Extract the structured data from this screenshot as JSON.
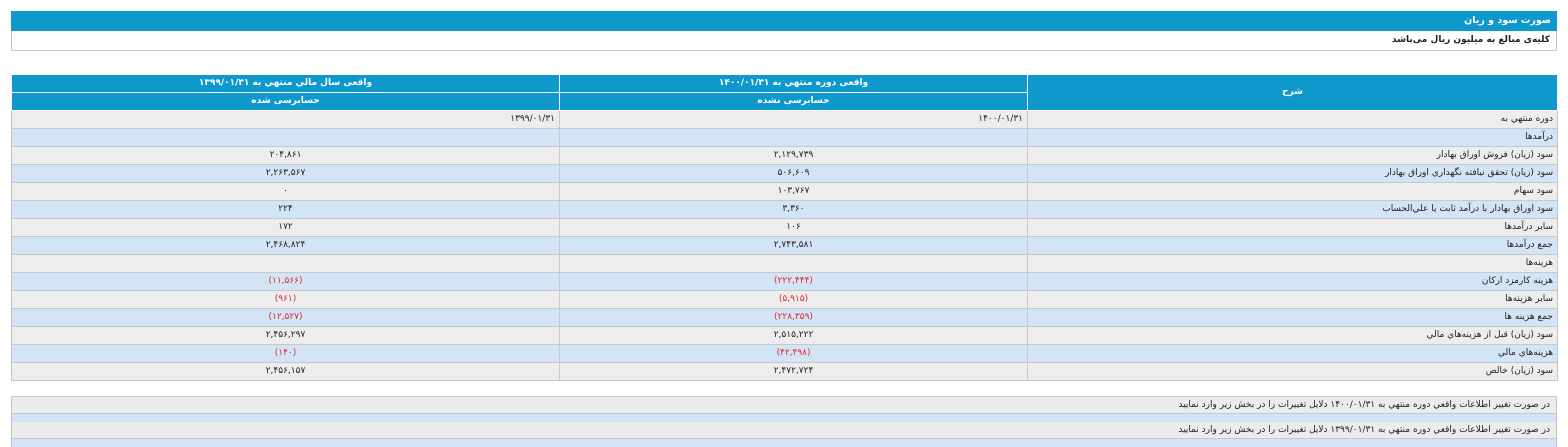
{
  "title": "صورت سود و زیان",
  "note": "کلیه‌ی مبالغ به میلیون ریال می‌باشد",
  "headers": {
    "desc": "شرح",
    "col1_top": "واقعی دوره منتهي به ۱۴۰۰/۰۱/۳۱",
    "col1_sub": "حسابرسی نشده",
    "col2_top": "واقعی سال مالي منتهي به ۱۳۹۹/۰۱/۳۱",
    "col2_sub": "حسابرسی شده"
  },
  "rows": [
    {
      "desc": "دوره منتهي به",
      "v1": "۱۴۰۰/۰۱/۳۱",
      "v2": "۱۳۹۹/۰۱/۳۱",
      "v1neg": false,
      "v2neg": false,
      "dateRow": true
    },
    {
      "desc": "درآمدها",
      "v1": "",
      "v2": "",
      "v1neg": false,
      "v2neg": false
    },
    {
      "desc": "سود (زيان) فروش اوراق بهادار",
      "v1": "۲,۱۲۹,۷۳۹",
      "v2": "۲۰۴,۸۶۱",
      "v1neg": false,
      "v2neg": false
    },
    {
      "desc": "سود (زيان) تحقق نيافته نگهداري اوراق بهادار",
      "v1": "۵۰۶,۶۰۹",
      "v2": "۲,۲۶۳,۵۶۷",
      "v1neg": false,
      "v2neg": false
    },
    {
      "desc": "سود سهام",
      "v1": "۱۰۳,۷۶۷",
      "v2": "۰",
      "v1neg": false,
      "v2neg": false
    },
    {
      "desc": "سود اوراق بهادار با درآمد ثابت يا علي‌الحساب",
      "v1": "۳,۳۶۰",
      "v2": "۲۲۴",
      "v1neg": false,
      "v2neg": false
    },
    {
      "desc": "ساير درآمدها",
      "v1": "۱۰۶",
      "v2": "۱۷۲",
      "v1neg": false,
      "v2neg": false
    },
    {
      "desc": "جمع درآمدها",
      "v1": "۲,۷۴۳,۵۸۱",
      "v2": "۲,۴۶۸,۸۲۴",
      "v1neg": false,
      "v2neg": false
    },
    {
      "desc": "هزينه‌ها",
      "v1": "",
      "v2": "",
      "v1neg": false,
      "v2neg": false
    },
    {
      "desc": "هزينه کارمزد ارکان",
      "v1": "(۲۲۲,۴۴۴)",
      "v2": "(۱۱,۵۶۶)",
      "v1neg": true,
      "v2neg": true
    },
    {
      "desc": "ساير هزينه‌ها",
      "v1": "(۵,۹۱۵)",
      "v2": "(۹۶۱)",
      "v1neg": true,
      "v2neg": true
    },
    {
      "desc": "جمع هزينه ها",
      "v1": "(۲۲۸,۳۵۹)",
      "v2": "(۱۲,۵۲۷)",
      "v1neg": true,
      "v2neg": true
    },
    {
      "desc": "سود (زيان) قبل از هزينه‌هاي مالي",
      "v1": "۲,۵۱۵,۲۲۲",
      "v2": "۲,۴۵۶,۲۹۷",
      "v1neg": false,
      "v2neg": false
    },
    {
      "desc": "هزينه‌هاي مالي",
      "v1": "(۴۲,۴۹۸)",
      "v2": "(۱۴۰)",
      "v1neg": true,
      "v2neg": true
    },
    {
      "desc": "سود (زيان) خالص",
      "v1": "۲,۴۷۲,۷۲۴",
      "v2": "۲,۴۵۶,۱۵۷",
      "v1neg": false,
      "v2neg": false
    }
  ],
  "footer": {
    "line1": "در صورت تغيير اطلاعات واقعي دوره منتهي به ۱۴۰۰/۰۱/۳۱ دلايل تغييرات را در بخش زير وارد نماييد",
    "line2": "در صورت تغيير اطلاعات واقعي دوره منتهي به ۱۳۹۹/۰۱/۳۱ دلايل تغييرات را در بخش زير وارد نماييد"
  },
  "colors": {
    "header_bg": "#0e98cc",
    "row_odd": "#ededed",
    "row_even": "#d2e4f6",
    "negative": "#e02a2a"
  }
}
